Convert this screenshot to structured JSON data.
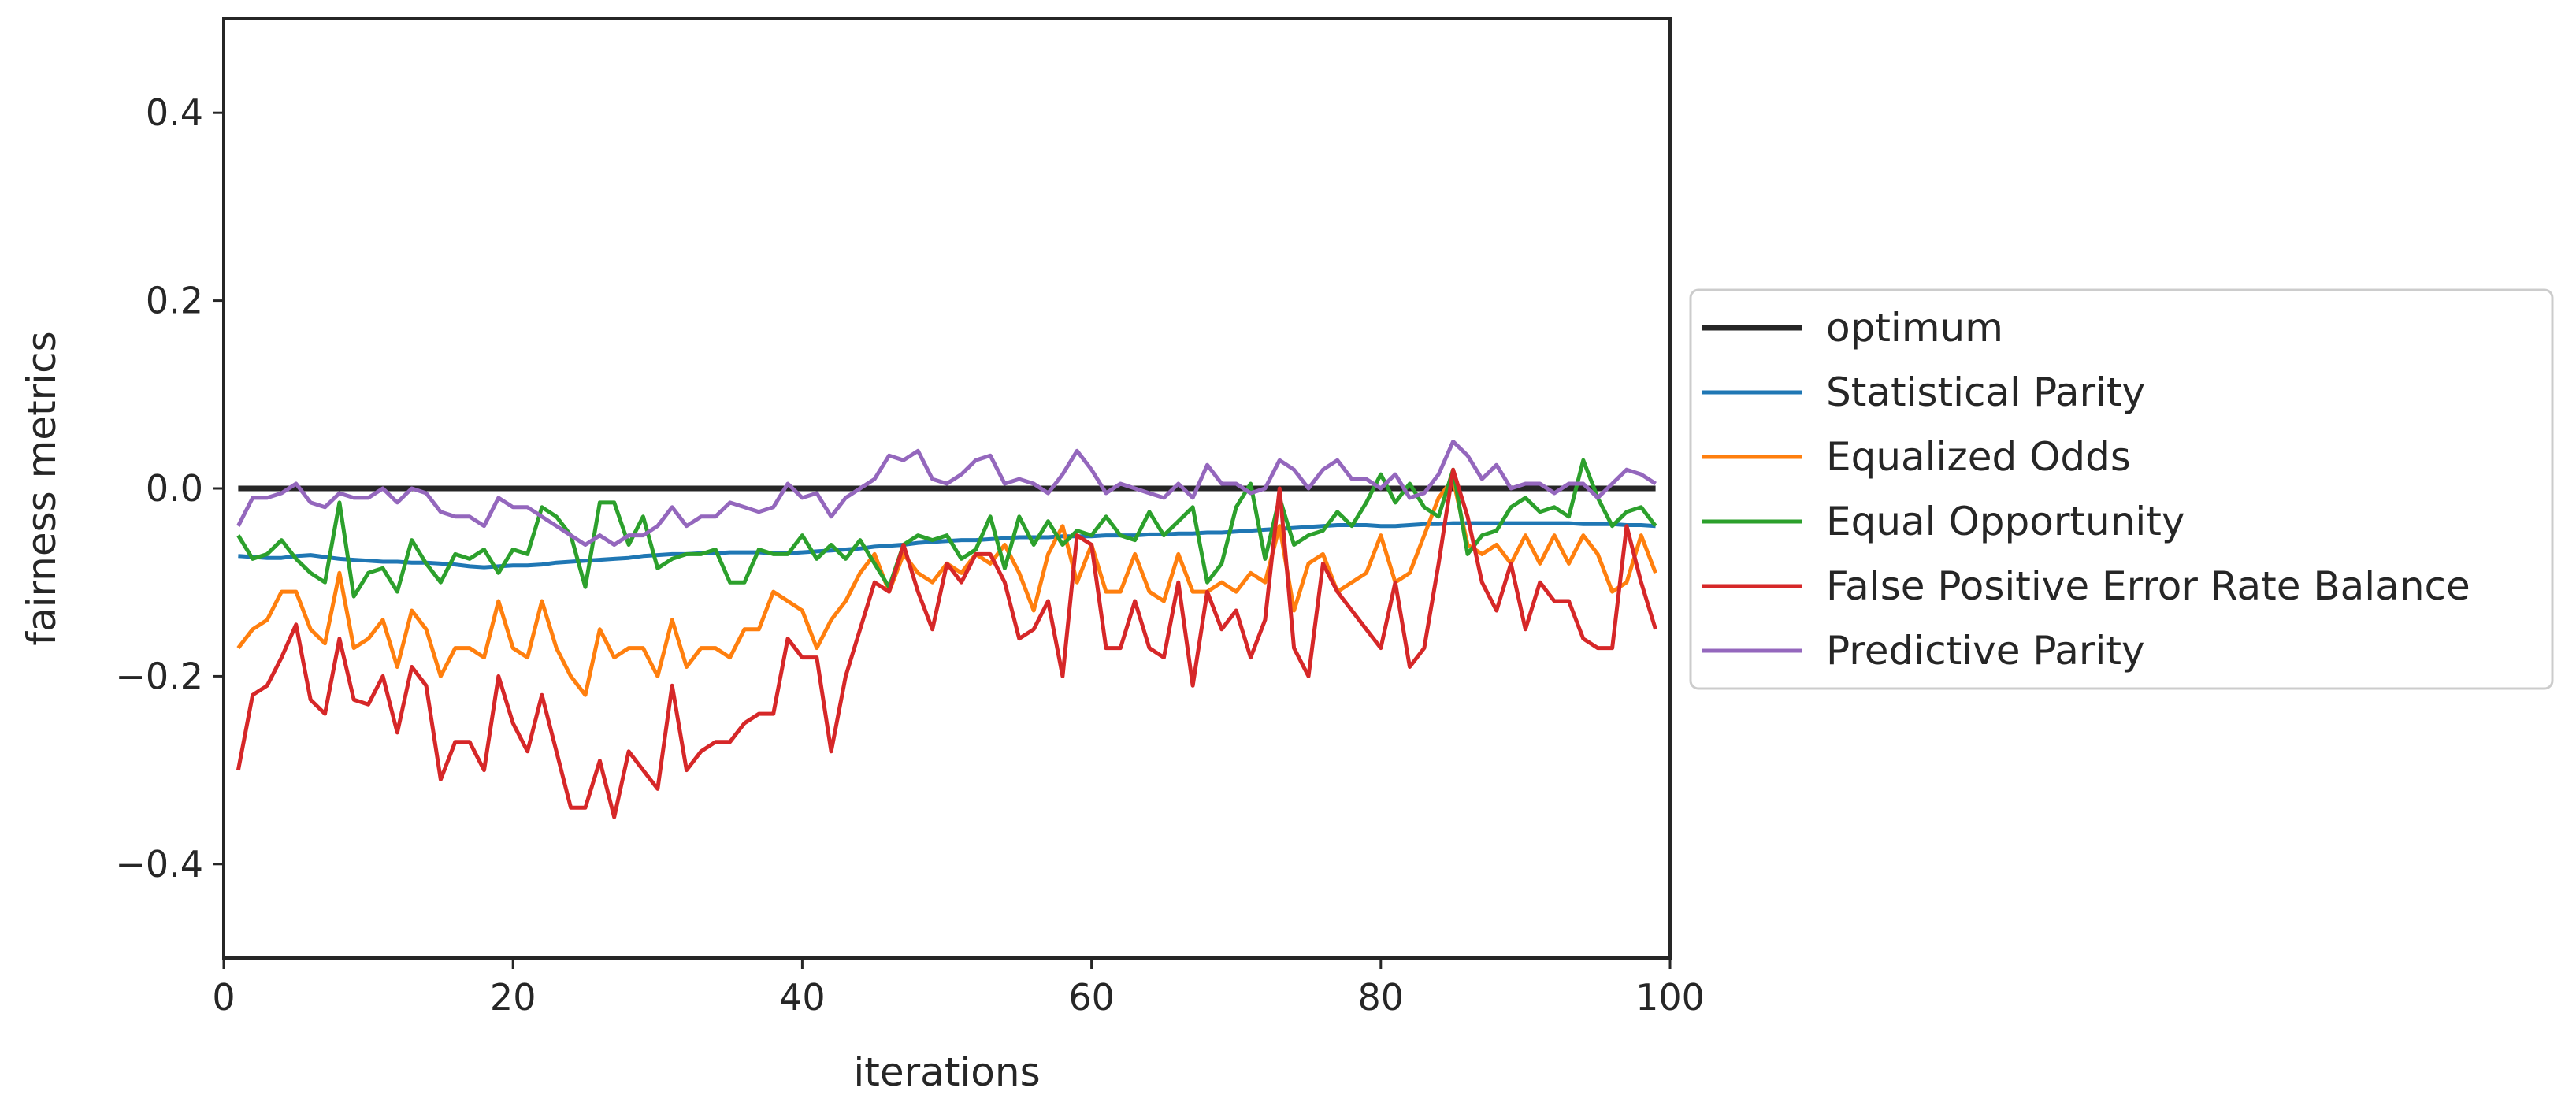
{
  "chart_data": {
    "type": "line",
    "title": "",
    "xlabel": "iterations",
    "ylabel": "fairness metrics",
    "xlim": [
      0,
      100
    ],
    "ylim": [
      -0.5,
      0.5
    ],
    "xticks": [
      0,
      20,
      40,
      60,
      80,
      100
    ],
    "xtick_labels": [
      "0",
      "20",
      "40",
      "60",
      "80",
      "100"
    ],
    "yticks": [
      -0.4,
      -0.2,
      0.0,
      0.2,
      0.4
    ],
    "ytick_labels": [
      "−0.4",
      "−0.2",
      "0.0",
      "0.2",
      "0.4"
    ],
    "grid": false,
    "legend_position": "right, outside plot",
    "x": [
      1,
      2,
      3,
      4,
      5,
      6,
      7,
      8,
      9,
      10,
      11,
      12,
      13,
      14,
      15,
      16,
      17,
      18,
      19,
      20,
      21,
      22,
      23,
      24,
      25,
      26,
      27,
      28,
      29,
      30,
      31,
      32,
      33,
      34,
      35,
      36,
      37,
      38,
      39,
      40,
      41,
      42,
      43,
      44,
      45,
      46,
      47,
      48,
      49,
      50,
      51,
      52,
      53,
      54,
      55,
      56,
      57,
      58,
      59,
      60,
      61,
      62,
      63,
      64,
      65,
      66,
      67,
      68,
      69,
      70,
      71,
      72,
      73,
      74,
      75,
      76,
      77,
      78,
      79,
      80,
      81,
      82,
      83,
      84,
      85,
      86,
      87,
      88,
      89,
      90,
      91,
      92,
      93,
      94,
      95,
      96,
      97,
      98,
      99
    ],
    "series": [
      {
        "name": "optimum",
        "color": "#262626",
        "values": [
          0,
          0,
          0,
          0,
          0,
          0,
          0,
          0,
          0,
          0,
          0,
          0,
          0,
          0,
          0,
          0,
          0,
          0,
          0,
          0,
          0,
          0,
          0,
          0,
          0,
          0,
          0,
          0,
          0,
          0,
          0,
          0,
          0,
          0,
          0,
          0,
          0,
          0,
          0,
          0,
          0,
          0,
          0,
          0,
          0,
          0,
          0,
          0,
          0,
          0,
          0,
          0,
          0,
          0,
          0,
          0,
          0,
          0,
          0,
          0,
          0,
          0,
          0,
          0,
          0,
          0,
          0,
          0,
          0,
          0,
          0,
          0,
          0,
          0,
          0,
          0,
          0,
          0,
          0,
          0,
          0,
          0,
          0,
          0,
          0,
          0,
          0,
          0,
          0,
          0,
          0,
          0,
          0,
          0,
          0,
          0,
          0,
          0,
          0
        ]
      },
      {
        "name": "Statistical Parity",
        "color": "#1f77b4",
        "values": [
          -0.072,
          -0.073,
          -0.074,
          -0.074,
          -0.072,
          -0.071,
          -0.073,
          -0.075,
          -0.076,
          -0.077,
          -0.078,
          -0.078,
          -0.079,
          -0.079,
          -0.08,
          -0.081,
          -0.083,
          -0.084,
          -0.083,
          -0.082,
          -0.082,
          -0.081,
          -0.079,
          -0.078,
          -0.077,
          -0.076,
          -0.075,
          -0.074,
          -0.072,
          -0.071,
          -0.07,
          -0.07,
          -0.069,
          -0.069,
          -0.068,
          -0.068,
          -0.068,
          -0.069,
          -0.069,
          -0.068,
          -0.067,
          -0.066,
          -0.065,
          -0.064,
          -0.062,
          -0.061,
          -0.06,
          -0.058,
          -0.057,
          -0.056,
          -0.055,
          -0.055,
          -0.054,
          -0.053,
          -0.052,
          -0.052,
          -0.052,
          -0.051,
          -0.051,
          -0.051,
          -0.05,
          -0.05,
          -0.05,
          -0.049,
          -0.049,
          -0.048,
          -0.048,
          -0.047,
          -0.047,
          -0.046,
          -0.045,
          -0.044,
          -0.043,
          -0.042,
          -0.041,
          -0.04,
          -0.039,
          -0.039,
          -0.039,
          -0.04,
          -0.04,
          -0.039,
          -0.038,
          -0.038,
          -0.037,
          -0.037,
          -0.037,
          -0.037,
          -0.037,
          -0.037,
          -0.037,
          -0.037,
          -0.037,
          -0.038,
          -0.038,
          -0.038,
          -0.039,
          -0.039,
          -0.04
        ]
      },
      {
        "name": "Equalized Odds",
        "color": "#ff7f0e",
        "values": [
          -0.17,
          -0.15,
          -0.14,
          -0.11,
          -0.11,
          -0.15,
          -0.165,
          -0.09,
          -0.17,
          -0.16,
          -0.14,
          -0.19,
          -0.13,
          -0.15,
          -0.2,
          -0.17,
          -0.17,
          -0.18,
          -0.12,
          -0.17,
          -0.18,
          -0.12,
          -0.17,
          -0.2,
          -0.22,
          -0.15,
          -0.18,
          -0.17,
          -0.17,
          -0.2,
          -0.14,
          -0.19,
          -0.17,
          -0.17,
          -0.18,
          -0.15,
          -0.15,
          -0.11,
          -0.12,
          -0.13,
          -0.17,
          -0.14,
          -0.12,
          -0.09,
          -0.07,
          -0.11,
          -0.07,
          -0.09,
          -0.1,
          -0.08,
          -0.09,
          -0.07,
          -0.08,
          -0.06,
          -0.09,
          -0.13,
          -0.07,
          -0.04,
          -0.1,
          -0.06,
          -0.11,
          -0.11,
          -0.07,
          -0.11,
          -0.12,
          -0.07,
          -0.11,
          -0.11,
          -0.1,
          -0.11,
          -0.09,
          -0.1,
          -0.04,
          -0.13,
          -0.08,
          -0.07,
          -0.11,
          -0.1,
          -0.09,
          -0.05,
          -0.1,
          -0.09,
          -0.05,
          -0.01,
          0.01,
          -0.06,
          -0.07,
          -0.06,
          -0.08,
          -0.05,
          -0.08,
          -0.05,
          -0.08,
          -0.05,
          -0.07,
          -0.11,
          -0.1,
          -0.05,
          -0.09
        ]
      },
      {
        "name": "Equal Opportunity",
        "color": "#2ca02c",
        "values": [
          -0.05,
          -0.075,
          -0.07,
          -0.055,
          -0.075,
          -0.09,
          -0.1,
          -0.015,
          -0.115,
          -0.09,
          -0.085,
          -0.11,
          -0.055,
          -0.08,
          -0.1,
          -0.07,
          -0.075,
          -0.065,
          -0.09,
          -0.065,
          -0.07,
          -0.02,
          -0.03,
          -0.05,
          -0.105,
          -0.015,
          -0.015,
          -0.06,
          -0.03,
          -0.085,
          -0.075,
          -0.07,
          -0.07,
          -0.065,
          -0.1,
          -0.1,
          -0.065,
          -0.07,
          -0.07,
          -0.05,
          -0.075,
          -0.06,
          -0.075,
          -0.055,
          -0.08,
          -0.105,
          -0.06,
          -0.05,
          -0.055,
          -0.05,
          -0.075,
          -0.065,
          -0.03,
          -0.085,
          -0.03,
          -0.06,
          -0.035,
          -0.06,
          -0.045,
          -0.05,
          -0.03,
          -0.05,
          -0.055,
          -0.025,
          -0.05,
          -0.035,
          -0.02,
          -0.1,
          -0.08,
          -0.02,
          0.005,
          -0.075,
          -0.01,
          -0.06,
          -0.05,
          -0.045,
          -0.025,
          -0.04,
          -0.015,
          0.015,
          -0.015,
          0.005,
          -0.02,
          -0.03,
          0.02,
          -0.07,
          -0.05,
          -0.045,
          -0.02,
          -0.01,
          -0.025,
          -0.02,
          -0.03,
          0.03,
          -0.01,
          -0.04,
          -0.025,
          -0.02,
          -0.04
        ]
      },
      {
        "name": "False Positive Error Rate Balance",
        "color": "#d62728",
        "values": [
          -0.3,
          -0.22,
          -0.21,
          -0.18,
          -0.145,
          -0.225,
          -0.24,
          -0.16,
          -0.225,
          -0.23,
          -0.2,
          -0.26,
          -0.19,
          -0.21,
          -0.31,
          -0.27,
          -0.27,
          -0.3,
          -0.2,
          -0.25,
          -0.28,
          -0.22,
          -0.28,
          -0.34,
          -0.34,
          -0.29,
          -0.35,
          -0.28,
          -0.3,
          -0.32,
          -0.21,
          -0.3,
          -0.28,
          -0.27,
          -0.27,
          -0.25,
          -0.24,
          -0.24,
          -0.16,
          -0.18,
          -0.18,
          -0.28,
          -0.2,
          -0.15,
          -0.1,
          -0.11,
          -0.06,
          -0.11,
          -0.15,
          -0.08,
          -0.1,
          -0.07,
          -0.07,
          -0.1,
          -0.16,
          -0.15,
          -0.12,
          -0.2,
          -0.05,
          -0.06,
          -0.17,
          -0.17,
          -0.12,
          -0.17,
          -0.18,
          -0.1,
          -0.21,
          -0.11,
          -0.15,
          -0.13,
          -0.18,
          -0.14,
          0.0,
          -0.17,
          -0.2,
          -0.08,
          -0.11,
          -0.13,
          -0.15,
          -0.17,
          -0.1,
          -0.19,
          -0.17,
          -0.08,
          0.02,
          -0.03,
          -0.1,
          -0.13,
          -0.08,
          -0.15,
          -0.1,
          -0.12,
          -0.12,
          -0.16,
          -0.17,
          -0.17,
          -0.04,
          -0.1,
          -0.15
        ]
      },
      {
        "name": "Predictive Parity",
        "color": "#9467bd",
        "values": [
          -0.04,
          -0.01,
          -0.01,
          -0.005,
          0.005,
          -0.015,
          -0.02,
          -0.005,
          -0.01,
          -0.01,
          0.0,
          -0.015,
          0.0,
          -0.005,
          -0.025,
          -0.03,
          -0.03,
          -0.04,
          -0.01,
          -0.02,
          -0.02,
          -0.03,
          -0.04,
          -0.05,
          -0.06,
          -0.05,
          -0.06,
          -0.05,
          -0.05,
          -0.04,
          -0.02,
          -0.04,
          -0.03,
          -0.03,
          -0.015,
          -0.02,
          -0.025,
          -0.02,
          0.005,
          -0.01,
          -0.005,
          -0.03,
          -0.01,
          0.0,
          0.01,
          0.035,
          0.03,
          0.04,
          0.01,
          0.005,
          0.015,
          0.03,
          0.035,
          0.005,
          0.01,
          0.005,
          -0.005,
          0.015,
          0.04,
          0.02,
          -0.005,
          0.005,
          0.0,
          -0.005,
          -0.01,
          0.005,
          -0.01,
          0.025,
          0.005,
          0.005,
          -0.005,
          0.0,
          0.03,
          0.02,
          0.0,
          0.02,
          0.03,
          0.01,
          0.01,
          0.0,
          0.015,
          -0.01,
          -0.005,
          0.015,
          0.05,
          0.035,
          0.01,
          0.025,
          0.0,
          0.005,
          0.005,
          -0.005,
          0.005,
          0.005,
          -0.01,
          0.005,
          0.02,
          0.015,
          0.005
        ]
      }
    ]
  }
}
